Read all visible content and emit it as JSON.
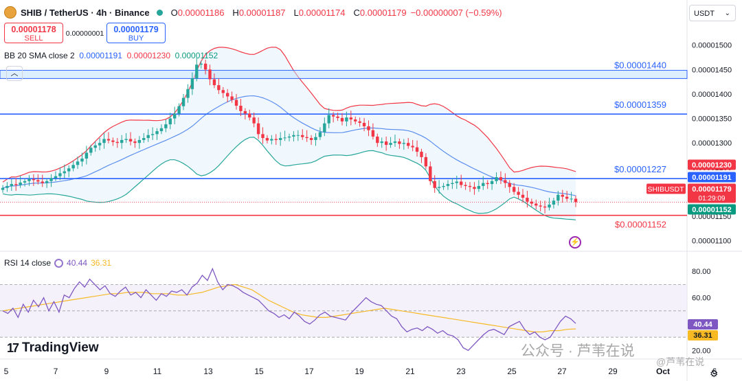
{
  "header": {
    "symbol": "SHIB / TetherUS · 4h · Binance",
    "o_label": "O",
    "o": "0.00001186",
    "h_label": "H",
    "h": "0.00001187",
    "l_label": "L",
    "l": "0.00001174",
    "c_label": "C",
    "c": "0.00001179",
    "change": "−0.00000007 (−0.59%)"
  },
  "trade": {
    "sell_price": "0.00001178",
    "sell_label": "SELL",
    "spread": "0.00000001",
    "buy_price": "0.00001179",
    "buy_label": "BUY"
  },
  "bb_legend": {
    "name": "BB 20 SMA close 2",
    "basis": "0.00001191",
    "upper": "0.00001230",
    "lower": "0.00001152"
  },
  "rsi_legend": {
    "name": "RSI 14 close",
    "rsi": "40.44",
    "ma": "36.31"
  },
  "currency_selector": "USDT",
  "branding": {
    "logo": "TradingView",
    "watermark": "公众号 · 芦苇在说",
    "watermark_small": "@芦苇在说"
  },
  "colors": {
    "up": "#26a69a",
    "down": "#f23645",
    "basis": "#5b8def",
    "upper": "#f23645",
    "lower": "#26a69a",
    "band_fill": "#e3f2fd",
    "hline_blue": "#2962ff",
    "hline_red": "#f23645",
    "rsi": "#7e57c2",
    "rsi_ma": "#f7b924"
  },
  "chart_data": {
    "type": "candlestick",
    "timeframe": "4h",
    "x_ticks": [
      "5",
      "7",
      "9",
      "11",
      "13",
      "15",
      "17",
      "19",
      "21",
      "23",
      "25",
      "27",
      "29",
      "Oct",
      "6"
    ],
    "y_ticks": [
      "0.00001500",
      "0.00001450",
      "0.00001400",
      "0.00001350",
      "0.00001300",
      "0.00001250",
      "0.00001200",
      "0.00001150",
      "0.00001100"
    ],
    "ylim": [
      1.08e-05,
      1.55e-05
    ],
    "candle_close": [
      1.208,
      1.212,
      1.216,
      1.214,
      1.219,
      1.222,
      1.226,
      1.224,
      1.221,
      1.218,
      1.222,
      1.228,
      1.232,
      1.238,
      1.242,
      1.248,
      1.255,
      1.262,
      1.268,
      1.28,
      1.29,
      1.295,
      1.3,
      1.308,
      1.305,
      1.302,
      1.3,
      1.306,
      1.308,
      1.303,
      1.3,
      1.306,
      1.31,
      1.316,
      1.318,
      1.324,
      1.33,
      1.338,
      1.35,
      1.36,
      1.375,
      1.392,
      1.41,
      1.432,
      1.46,
      1.462,
      1.45,
      1.43,
      1.418,
      1.408,
      1.402,
      1.395,
      1.388,
      1.376,
      1.365,
      1.36,
      1.352,
      1.34,
      1.318,
      1.31,
      1.305,
      1.308,
      1.306,
      1.31,
      1.311,
      1.313,
      1.316,
      1.316,
      1.312,
      1.31,
      1.306,
      1.312,
      1.322,
      1.34,
      1.357,
      1.354,
      1.351,
      1.344,
      1.352,
      1.348,
      1.344,
      1.341,
      1.334,
      1.326,
      1.313,
      1.3,
      1.303,
      1.296,
      1.3,
      1.303,
      1.298,
      1.3,
      1.294,
      1.291,
      1.282,
      1.271,
      1.252,
      1.222,
      1.208,
      1.21,
      1.212,
      1.216,
      1.218,
      1.221,
      1.214,
      1.212,
      1.21,
      1.206,
      1.212,
      1.218,
      1.216,
      1.222,
      1.23,
      1.224,
      1.218,
      1.21,
      1.2,
      1.194,
      1.188,
      1.18,
      1.176,
      1.172,
      1.17,
      1.168,
      1.174,
      1.182,
      1.194,
      1.19,
      1.186,
      1.186,
      1.179
    ],
    "candle_scale": "values × 1e-5 USDT",
    "bollinger": {
      "period": 20,
      "stddev": 2,
      "basis_last": 1.191e-05,
      "upper_last": 1.23e-05,
      "lower_last": 1.152e-05
    },
    "horizontal_lines": [
      {
        "label": "$0.00001440",
        "value": 1.44e-05,
        "color": "blue"
      },
      {
        "label": "$0.00001359",
        "value": 1.359e-05,
        "color": "blue"
      },
      {
        "label": "$0.00001227",
        "value": 1.227e-05,
        "color": "blue"
      },
      {
        "label": "$0.00001152",
        "value": 1.152e-05,
        "color": "red"
      }
    ],
    "price_tags": [
      {
        "text": "0.00001230",
        "color": "#f23645"
      },
      {
        "text": "0.00001191",
        "color": "#2962ff"
      },
      {
        "text": "0.00001179",
        "color": "#f23645",
        "symbol": "SHIBUSDT",
        "countdown": "01:29:09"
      },
      {
        "text": "0.00001152",
        "color": "#089981"
      }
    ],
    "rsi": {
      "y_ticks": [
        "80.00",
        "60.00",
        "20.00"
      ],
      "ylim": [
        15,
        90
      ],
      "overbought": 70,
      "middle": 50,
      "oversold": 30,
      "rsi_last": "40.44",
      "ma_last": "36.31",
      "values": [
        50,
        48,
        52,
        45,
        55,
        49,
        58,
        53,
        60,
        50,
        57,
        49,
        62,
        60,
        67,
        72,
        68,
        74,
        70,
        66,
        69,
        63,
        61,
        65,
        68,
        62,
        64,
        60,
        66,
        62,
        58,
        63,
        61,
        65,
        64,
        66,
        62,
        68,
        71,
        77,
        73,
        82,
        72,
        66,
        70,
        69,
        67,
        64,
        62,
        60,
        58,
        54,
        50,
        48,
        45,
        47,
        44,
        49,
        46,
        42,
        40,
        43,
        47,
        49,
        46,
        45,
        44,
        43,
        48,
        52,
        56,
        60,
        57,
        55,
        54,
        50,
        46,
        44,
        38,
        34,
        36,
        37,
        35,
        38,
        36,
        33,
        35,
        32,
        31,
        28,
        22,
        20,
        24,
        28,
        32,
        35,
        36,
        34,
        32,
        38,
        40,
        42,
        36,
        32,
        34,
        30,
        28,
        30,
        36,
        42,
        46,
        44,
        40.44
      ],
      "ma_values": [
        50,
        51,
        52,
        53,
        54,
        55,
        56,
        57,
        58,
        59,
        60,
        61,
        62,
        63,
        63,
        64,
        64,
        64,
        63,
        63,
        63,
        62,
        62,
        63,
        64,
        66,
        68,
        69,
        70,
        68,
        66,
        62,
        58,
        55,
        52,
        49,
        47,
        46,
        45,
        45,
        46,
        47,
        48,
        49,
        50,
        51,
        52,
        51,
        50,
        49,
        48,
        47,
        46,
        45,
        44,
        43,
        42,
        41,
        40,
        39,
        38,
        37,
        36,
        35,
        34,
        34,
        35,
        35,
        36,
        36.31
      ]
    }
  }
}
